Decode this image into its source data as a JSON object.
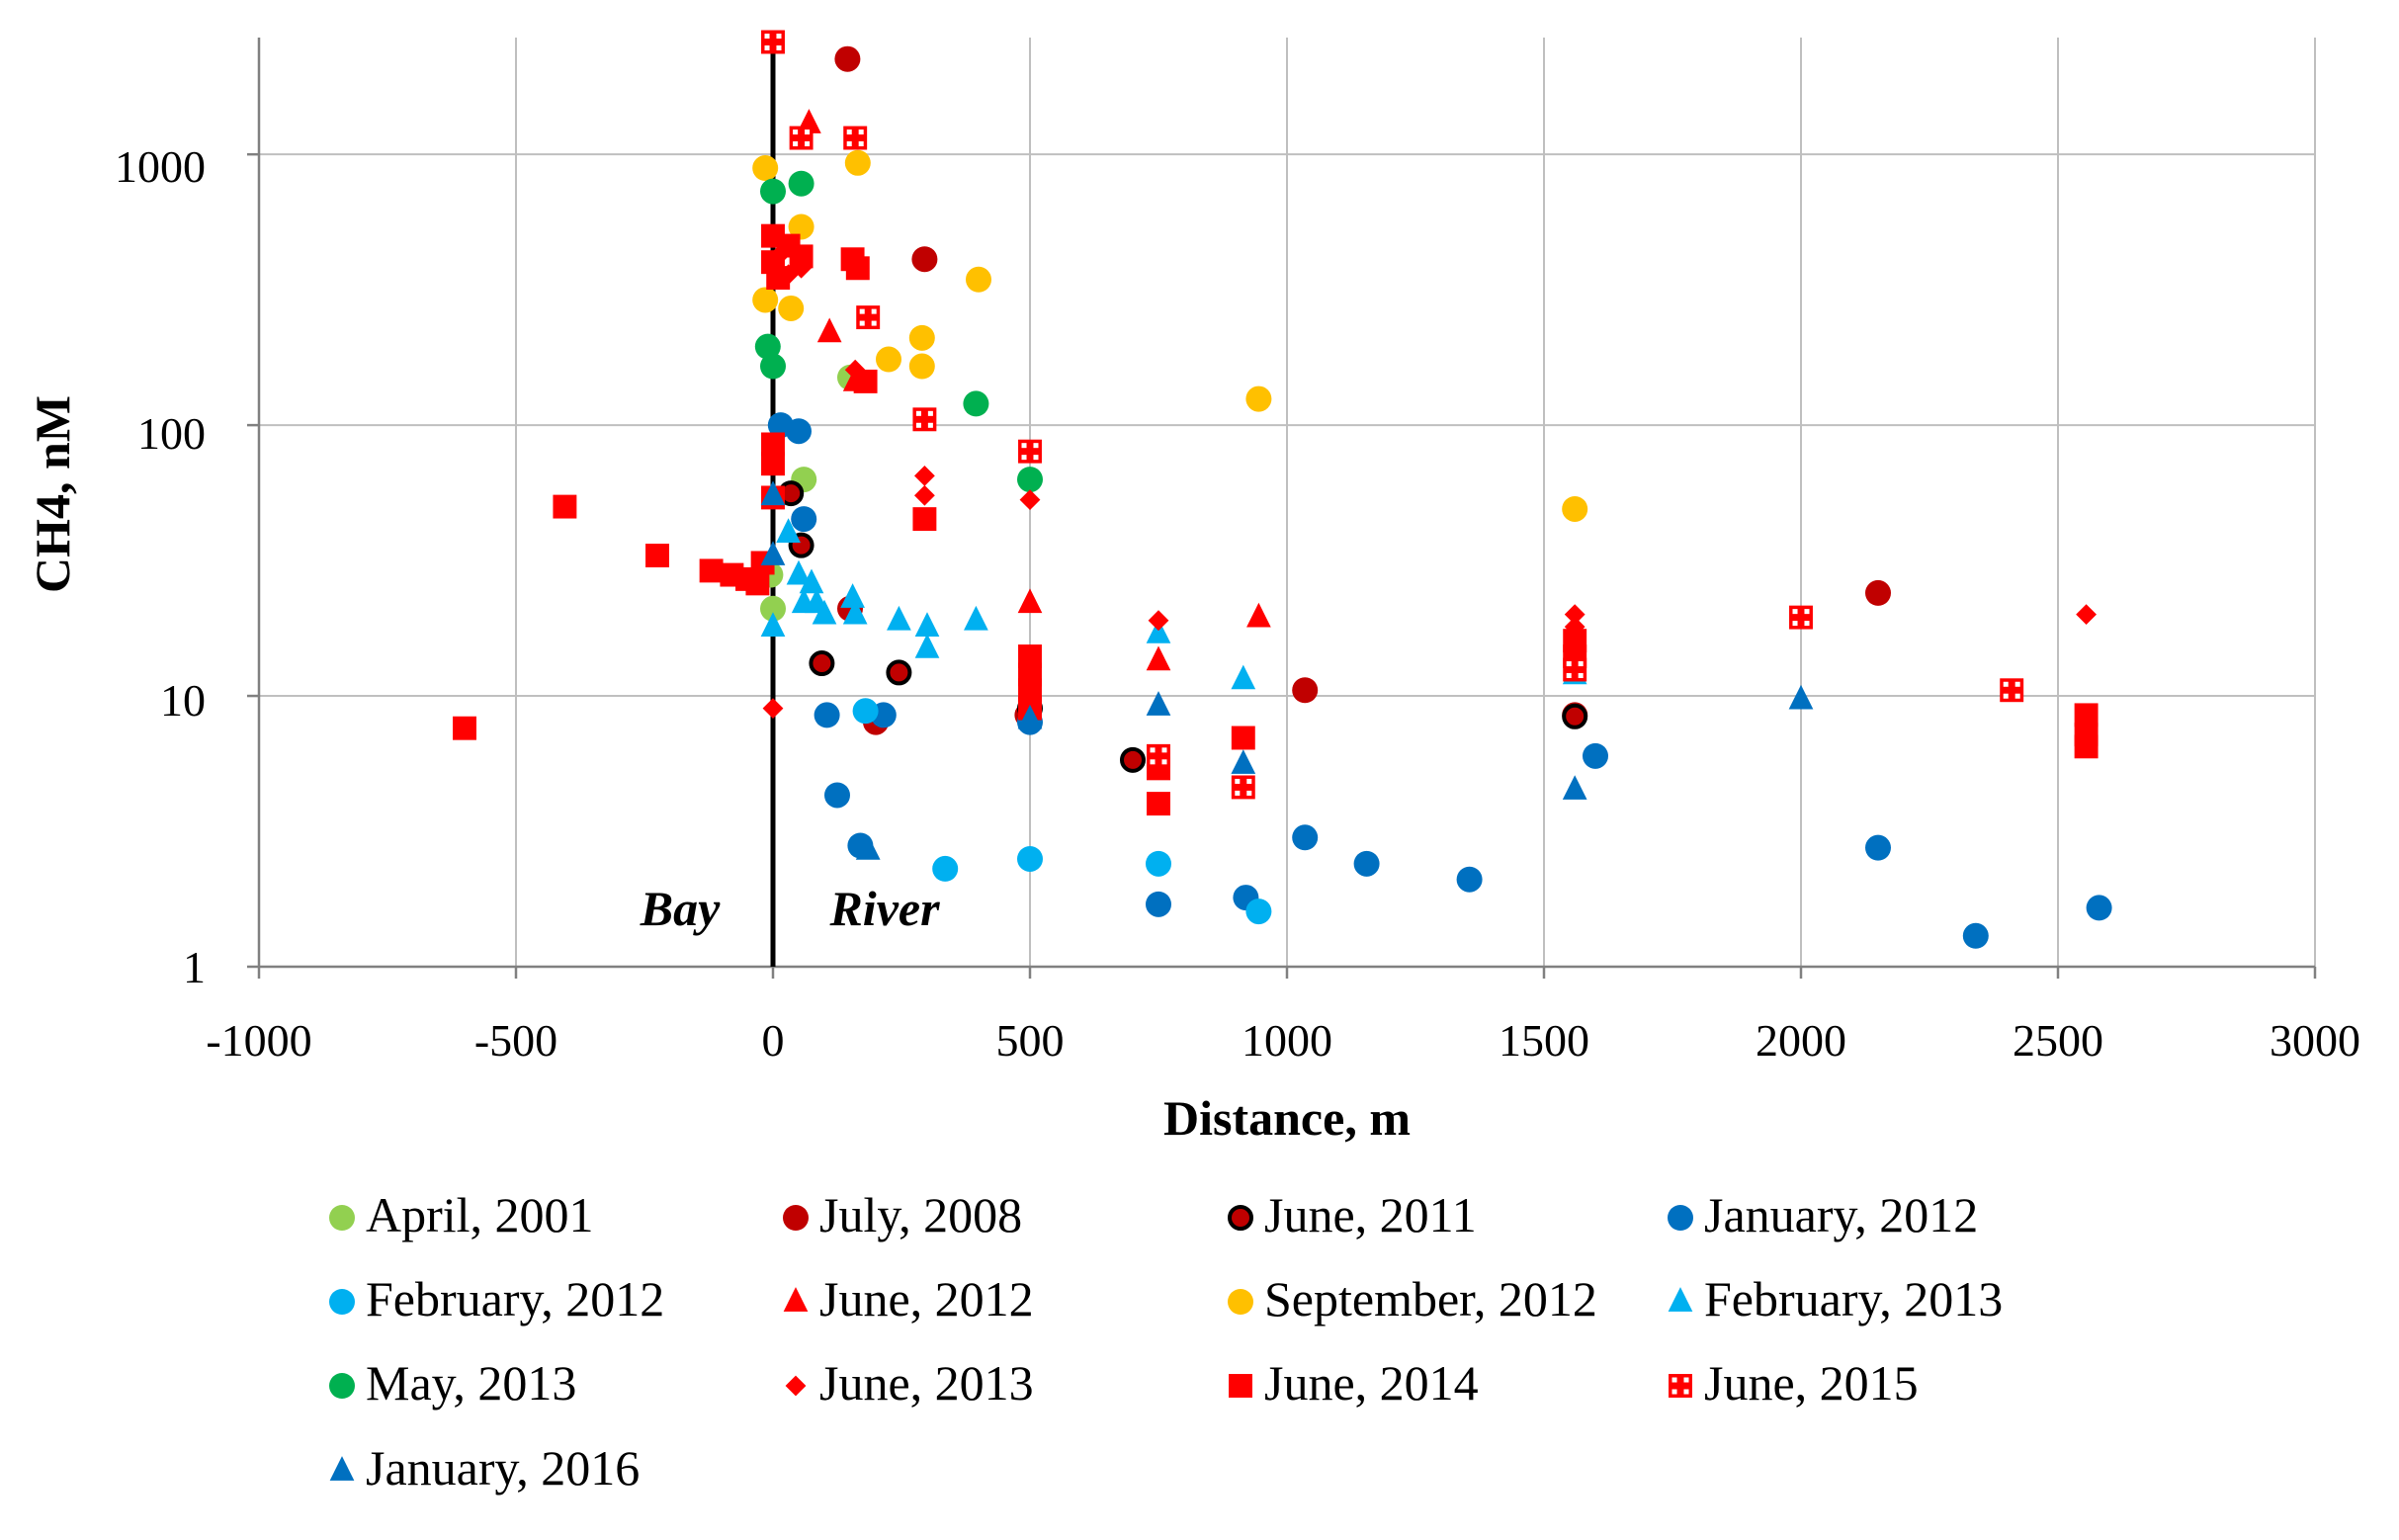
{
  "chart_data": {
    "type": "scatter",
    "xlabel": "Distance, m",
    "ylabel": "CH4, nM",
    "xlim": [
      -1000,
      3000
    ],
    "ylim": [
      1,
      2700
    ],
    "yscale": "log",
    "xticks": [
      -1000,
      -500,
      0,
      500,
      1000,
      1500,
      2000,
      2500,
      3000
    ],
    "xtick_labels": [
      "-1000",
      "-500",
      "0",
      "500",
      "1000",
      "1500",
      "2000",
      "2500",
      "3000"
    ],
    "yticks": [
      1,
      10,
      100,
      1000
    ],
    "ytick_labels": [
      "1",
      "10",
      "100",
      "1000"
    ],
    "grid": true,
    "legend_position": "bottom",
    "annotations": [
      {
        "text": "Bay",
        "x": -180,
        "y": 2.2
      },
      {
        "text": "River",
        "x": 210,
        "y": 2.2
      }
    ],
    "divider_x": 0,
    "series": [
      {
        "name": "April, 2001",
        "marker": "circle",
        "color": "#92d050",
        "points": [
          [
            60,
            63
          ],
          [
            0,
            21
          ],
          [
            -5,
            28
          ],
          [
            150,
            150
          ]
        ]
      },
      {
        "name": "July, 2008",
        "marker": "circle",
        "color": "#c00000",
        "points": [
          [
            145,
            2250
          ],
          [
            295,
            410
          ],
          [
            2150,
            24
          ],
          [
            1035,
            10.5
          ],
          [
            150,
            21
          ],
          [
            495,
            8.5
          ],
          [
            200,
            8
          ],
          [
            1560,
            8.5
          ]
        ]
      },
      {
        "name": "June, 2011",
        "marker": "circle-outline",
        "color": "#c00000",
        "points": [
          [
            35,
            56
          ],
          [
            55,
            36
          ],
          [
            95,
            13.2
          ],
          [
            245,
            12.2
          ],
          [
            700,
            5.8
          ],
          [
            500,
            9
          ],
          [
            1560,
            8.4
          ]
        ]
      },
      {
        "name": "January, 2012",
        "marker": "circle",
        "color": "#0070c0",
        "points": [
          [
            15,
            100
          ],
          [
            50,
            95
          ],
          [
            60,
            45
          ],
          [
            105,
            8.5
          ],
          [
            125,
            4.3
          ],
          [
            170,
            2.8
          ],
          [
            215,
            8.5
          ],
          [
            500,
            8
          ],
          [
            750,
            1.7
          ],
          [
            920,
            1.8
          ],
          [
            1035,
            3
          ],
          [
            1155,
            2.4
          ],
          [
            1355,
            2.1
          ],
          [
            1600,
            6
          ],
          [
            2150,
            2.75
          ],
          [
            2340,
            1.3
          ],
          [
            2580,
            1.65
          ]
        ]
      },
      {
        "name": "February, 2012",
        "marker": "circle",
        "color": "#00b0f0",
        "points": [
          [
            180,
            8.8
          ],
          [
            335,
            2.3
          ],
          [
            500,
            2.5
          ],
          [
            750,
            2.4
          ],
          [
            945,
            1.6
          ]
        ]
      },
      {
        "name": "June, 2012",
        "marker": "triangle",
        "color": "#ff0000",
        "points": [
          [
            70,
            1300
          ],
          [
            110,
            220
          ],
          [
            160,
            145
          ],
          [
            500,
            22
          ],
          [
            750,
            13.5
          ],
          [
            945,
            19.5
          ]
        ]
      },
      {
        "name": "September, 2012",
        "marker": "circle",
        "color": "#ffc000",
        "points": [
          [
            -15,
            890
          ],
          [
            55,
            540
          ],
          [
            165,
            930
          ],
          [
            -15,
            290
          ],
          [
            35,
            270
          ],
          [
            225,
            175
          ],
          [
            290,
            210
          ],
          [
            290,
            165
          ],
          [
            400,
            345
          ],
          [
            945,
            125
          ],
          [
            1560,
            49
          ]
        ]
      },
      {
        "name": "February, 2013",
        "marker": "triangle",
        "color": "#00b0f0",
        "points": [
          [
            0,
            18
          ],
          [
            30,
            40
          ],
          [
            50,
            28
          ],
          [
            60,
            22
          ],
          [
            75,
            26
          ],
          [
            85,
            22
          ],
          [
            100,
            20
          ],
          [
            155,
            23
          ],
          [
            160,
            20
          ],
          [
            245,
            19
          ],
          [
            300,
            18
          ],
          [
            300,
            15
          ],
          [
            395,
            19
          ],
          [
            750,
            17
          ],
          [
            915,
            11.5
          ],
          [
            1560,
            12
          ]
        ]
      },
      {
        "name": "May, 2013",
        "marker": "circle",
        "color": "#00b050",
        "points": [
          [
            0,
            730
          ],
          [
            55,
            780
          ],
          [
            -10,
            195
          ],
          [
            0,
            165
          ],
          [
            395,
            120
          ],
          [
            500,
            63
          ]
        ]
      },
      {
        "name": "June, 2013",
        "marker": "diamond",
        "color": "#ff0000",
        "points": [
          [
            0,
            9
          ],
          [
            10,
            420
          ],
          [
            30,
            360
          ],
          [
            55,
            380
          ],
          [
            160,
            160
          ],
          [
            295,
            65
          ],
          [
            295,
            55
          ],
          [
            500,
            53
          ],
          [
            750,
            19
          ],
          [
            1560,
            18
          ],
          [
            1560,
            20
          ],
          [
            2555,
            20
          ]
        ]
      },
      {
        "name": "June, 2014",
        "marker": "square",
        "color": "#ff0000",
        "points": [
          [
            -600,
            7.6
          ],
          [
            -405,
            50
          ],
          [
            -225,
            33
          ],
          [
            -120,
            29
          ],
          [
            -80,
            28
          ],
          [
            -50,
            27
          ],
          [
            -30,
            26
          ],
          [
            -20,
            31
          ],
          [
            0,
            500
          ],
          [
            0,
            400
          ],
          [
            10,
            350
          ],
          [
            30,
            460
          ],
          [
            55,
            420
          ],
          [
            155,
            410
          ],
          [
            165,
            380
          ],
          [
            180,
            145
          ],
          [
            0,
            85
          ],
          [
            0,
            72
          ],
          [
            0,
            54
          ],
          [
            295,
            45
          ],
          [
            500,
            14
          ],
          [
            500,
            12
          ],
          [
            500,
            10.5
          ],
          [
            500,
            9
          ],
          [
            750,
            5.4
          ],
          [
            750,
            4
          ],
          [
            915,
            7
          ],
          [
            1560,
            16
          ],
          [
            1560,
            14
          ],
          [
            2555,
            8.5
          ],
          [
            2555,
            7.2
          ],
          [
            2555,
            6.5
          ]
        ]
      },
      {
        "name": "June, 2015",
        "marker": "square-pattern",
        "color": "#ff0000",
        "points": [
          [
            0,
            2600
          ],
          [
            55,
            1150
          ],
          [
            160,
            1150
          ],
          [
            185,
            250
          ],
          [
            295,
            105
          ],
          [
            500,
            80
          ],
          [
            750,
            6
          ],
          [
            915,
            4.6
          ],
          [
            1560,
            12.5
          ],
          [
            2000,
            19.5
          ],
          [
            2410,
            10.5
          ]
        ]
      },
      {
        "name": "January, 2016",
        "marker": "triangle",
        "color": "#0070c0",
        "points": [
          [
            0,
            33
          ],
          [
            0,
            55
          ],
          [
            185,
            2.7
          ],
          [
            500,
            8.2
          ],
          [
            750,
            9.2
          ],
          [
            915,
            5.6
          ],
          [
            1560,
            4.5
          ],
          [
            2000,
            9.7
          ]
        ]
      }
    ]
  }
}
